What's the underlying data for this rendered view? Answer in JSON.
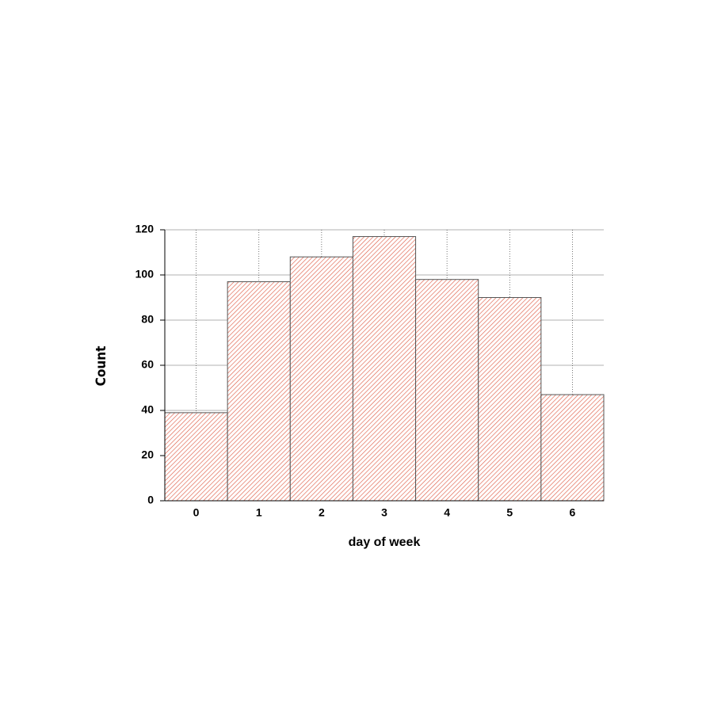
{
  "chart_data": {
    "type": "histogram",
    "x_label": "day of week",
    "y_label": "Count",
    "bins": [
      -0.5,
      0.5,
      1.5,
      2.5,
      3.5,
      4.5,
      5.5,
      6.5
    ],
    "values": [
      39,
      97,
      108,
      117,
      98,
      90,
      47
    ],
    "color": "#e0604a",
    "xlim": [
      -0.5,
      6.5
    ],
    "xticks": [
      0,
      1,
      2,
      3,
      4,
      5,
      6
    ],
    "ylim": [
      0,
      120
    ],
    "yticks": [
      0,
      20,
      40,
      60,
      80,
      100,
      120
    ],
    "grid": true
  }
}
